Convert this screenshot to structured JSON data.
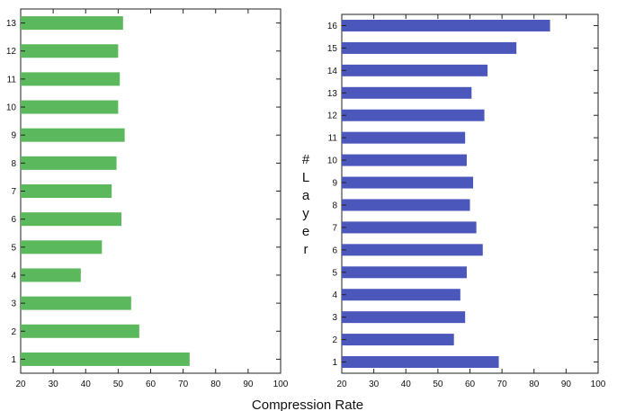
{
  "chart_data": [
    {
      "type": "bar",
      "orientation": "horizontal",
      "color": "#5cb85c",
      "categories": [
        "1",
        "2",
        "3",
        "4",
        "5",
        "6",
        "7",
        "8",
        "9",
        "10",
        "11",
        "12",
        "13"
      ],
      "values": [
        72,
        56.5,
        54,
        38.5,
        45,
        51,
        48,
        49.5,
        52,
        50,
        50.5,
        50,
        51.5
      ],
      "xlim": [
        20,
        100
      ],
      "xticks": [
        "20",
        "30",
        "40",
        "50",
        "60",
        "70",
        "80",
        "90",
        "100"
      ],
      "grid": false
    },
    {
      "type": "bar",
      "orientation": "horizontal",
      "color": "#4c57bb",
      "categories": [
        "1",
        "2",
        "3",
        "4",
        "5",
        "6",
        "7",
        "8",
        "9",
        "10",
        "11",
        "12",
        "13",
        "14",
        "15",
        "16"
      ],
      "values": [
        69,
        55,
        58.5,
        57,
        59,
        64,
        62,
        60,
        61,
        59,
        58.5,
        64.5,
        60.5,
        65.5,
        74.5,
        85
      ],
      "xlim": [
        20,
        100
      ],
      "xticks": [
        "20",
        "30",
        "40",
        "50",
        "60",
        "70",
        "80",
        "90",
        "100"
      ],
      "grid": false
    }
  ],
  "ylabel": "#Layer",
  "xlabel": "Compression Rate"
}
